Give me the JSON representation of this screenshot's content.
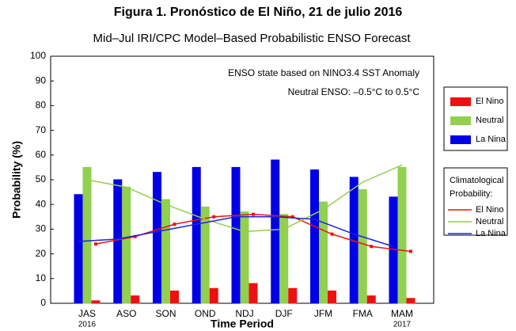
{
  "chart_data": {
    "type": "bar",
    "title": "Figura 1. Pronóstico de El Niño, 21 de julio 2016",
    "subtitle": "Mid–Jul IRI/CPC Model–Based Probabilistic ENSO Forecast",
    "annotations": [
      "ENSO state based on NINO3.4 SST Anomaly",
      "Neutral ENSO: –0.5°C to 0.5°C"
    ],
    "x_label": "Time Period",
    "y_label": "Probability (%)",
    "categories": [
      "JAS",
      "ASO",
      "SON",
      "OND",
      "NDJ",
      "DJF",
      "JFM",
      "FMA",
      "MAM"
    ],
    "x_sublabels": [
      "2016",
      null,
      null,
      null,
      null,
      null,
      null,
      null,
      "2017"
    ],
    "ylim": [
      0,
      100
    ],
    "yticks": [
      0,
      10,
      20,
      30,
      40,
      50,
      60,
      70,
      80,
      90,
      100
    ],
    "grid": false,
    "series": [
      {
        "name": "La Nina",
        "kind": "bar",
        "color": "#0000e6",
        "values": [
          44,
          50,
          53,
          55,
          55,
          58,
          54,
          51,
          43
        ]
      },
      {
        "name": "Neutral",
        "kind": "bar",
        "color": "#92d050",
        "values": [
          55,
          47,
          42,
          39,
          37,
          36,
          41,
          46,
          55
        ]
      },
      {
        "name": "El Nino",
        "kind": "bar",
        "color": "#ee1111",
        "values": [
          1,
          3,
          5,
          6,
          8,
          6,
          5,
          3,
          2
        ]
      }
    ],
    "line_legend_title": "Climatological Probability:",
    "line_series": [
      {
        "name": "El Nino",
        "color": "#ee1111",
        "markers": true,
        "values": [
          24,
          27,
          32,
          35,
          36,
          35,
          28,
          23,
          21
        ]
      },
      {
        "name": "Neutral",
        "color": "#92d050",
        "markers": false,
        "values": [
          50,
          47,
          40,
          34,
          29,
          30,
          38,
          49,
          56
        ]
      },
      {
        "name": "La Nina",
        "color": "#2222dd",
        "markers": false,
        "values": [
          25,
          26,
          29,
          32,
          35,
          35,
          34,
          28,
          23
        ]
      }
    ]
  }
}
